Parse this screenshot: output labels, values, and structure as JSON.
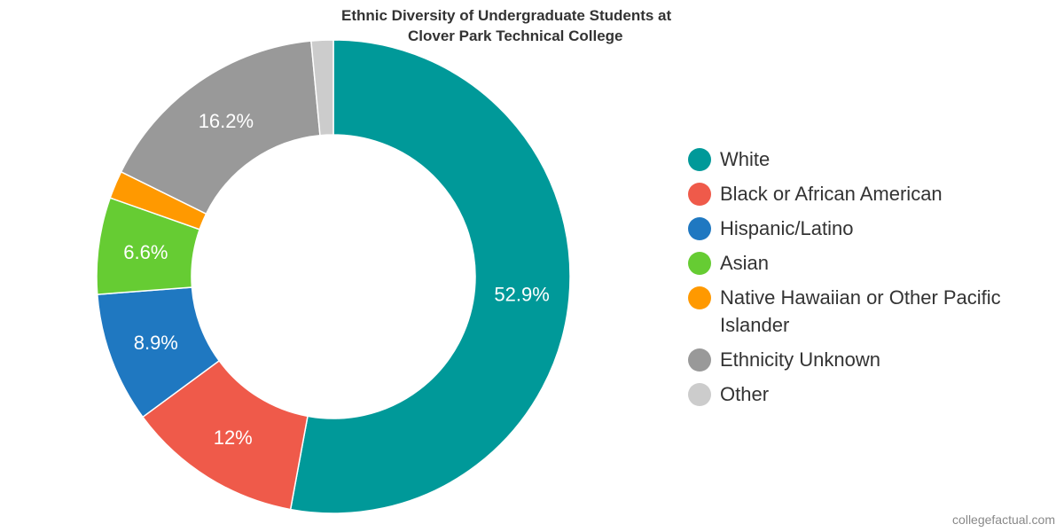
{
  "chart_data": {
    "type": "pie",
    "title": "Ethnic Diversity of Undergraduate Students at Clover Park Technical College",
    "title_lines": [
      "Ethnic Diversity of Undergraduate Students at",
      "Clover Park Technical College"
    ],
    "style": "donut",
    "legend_position": "right",
    "slices": [
      {
        "name": "White",
        "value": 52.9,
        "label": "52.9%",
        "color": "#009999"
      },
      {
        "name": "Black or African American",
        "value": 12.0,
        "label": "12%",
        "color": "#EF5A4A"
      },
      {
        "name": "Hispanic/Latino",
        "value": 8.9,
        "label": "8.9%",
        "color": "#1F78C1"
      },
      {
        "name": "Asian",
        "value": 6.6,
        "label": "6.6%",
        "color": "#66CC33"
      },
      {
        "name": "Native Hawaiian or Other Pacific Islander",
        "value": 1.9,
        "label": "",
        "color": "#FF9900"
      },
      {
        "name": "Ethnicity Unknown",
        "value": 16.2,
        "label": "16.2%",
        "color": "#999999"
      },
      {
        "name": "Other",
        "value": 1.5,
        "label": "",
        "color": "#CCCCCC"
      }
    ]
  },
  "credit": "collegefactual.com"
}
